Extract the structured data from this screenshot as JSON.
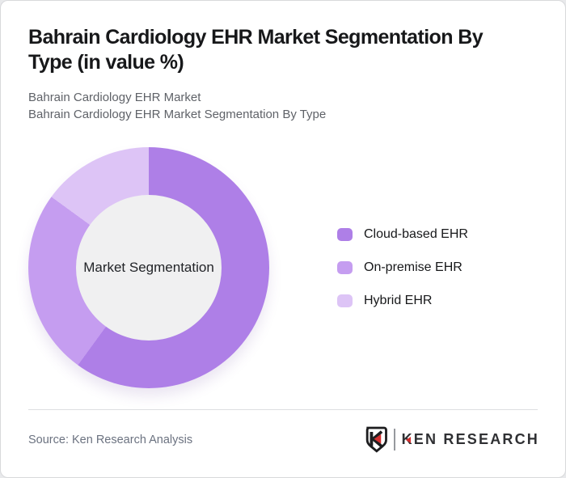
{
  "header": {
    "title": "Bahrain Cardiology EHR Market Segmentation By\nType (in value %)",
    "subtitle_lines": [
      "Bahrain Cardiology EHR Market",
      "Bahrain Cardiology EHR Market Segmentation By Type"
    ]
  },
  "chart_data": {
    "type": "pie",
    "variant": "donut",
    "title": "Bahrain Cardiology EHR Market Segmentation By Type (in value %)",
    "categories": [
      "Cloud-based EHR",
      "On-premise EHR",
      "Hybrid EHR"
    ],
    "values": [
      60,
      25,
      15
    ],
    "unit": "% of market value (estimated from arc angles, no data labels shown)",
    "colors": [
      "#ae7fe7",
      "#c59df0",
      "#ddc4f6"
    ],
    "center_label": "Market Segmentation",
    "start_angle_deg": 0,
    "direction": "clockwise",
    "legend_position": "right",
    "inner_circle_color": "#f0f0f1"
  },
  "footer": {
    "source": "Source: Ken Research Analysis",
    "logo_text": "KEN RESEARCH"
  }
}
